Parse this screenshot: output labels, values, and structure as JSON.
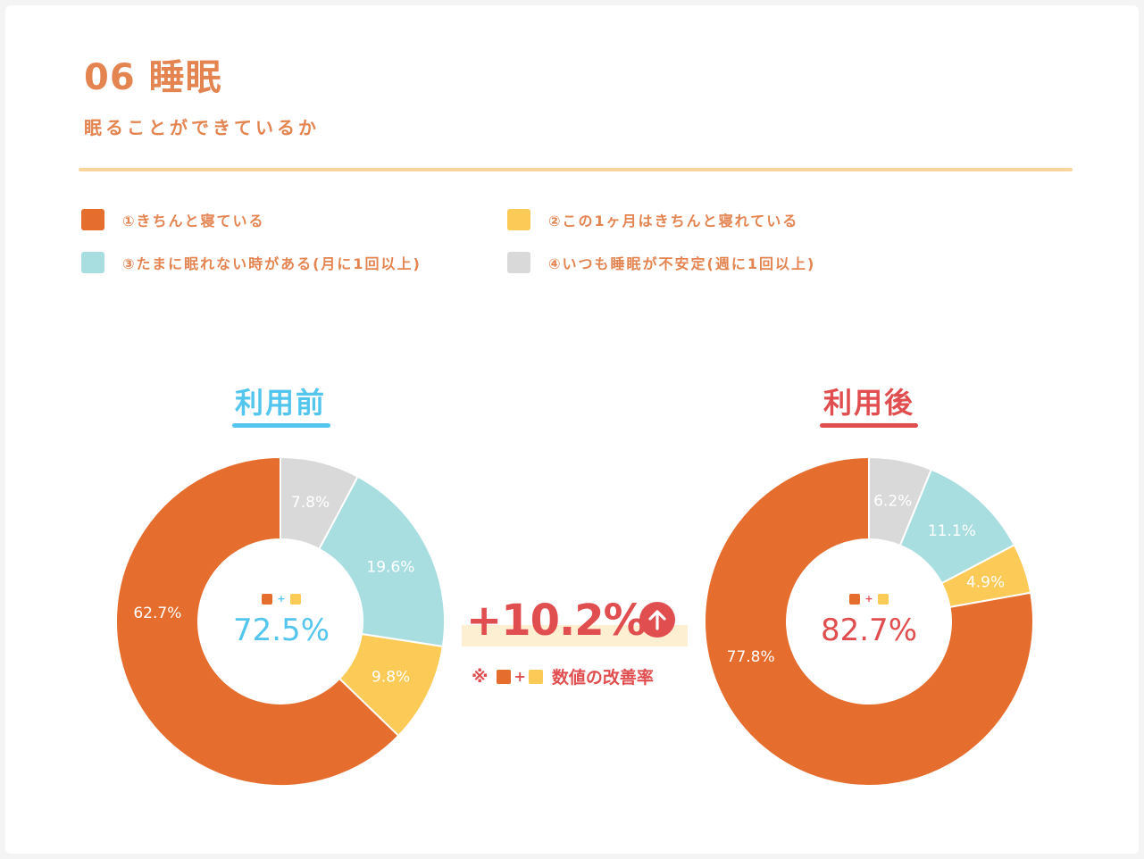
{
  "header": {
    "title": "06 睡眠",
    "subtitle": "眠ることができているか"
  },
  "legend": [
    {
      "label": "①きちんと寝ている",
      "color": "#e56d2d"
    },
    {
      "label": "②この1ヶ月はきちんと寝れている",
      "color": "#fcca56"
    },
    {
      "label": "③たまに眠れない時がある(月に1回以上)",
      "color": "#a9dee1"
    },
    {
      "label": "④いつも睡眠が不安定(週に1回以上)",
      "color": "#d9d9d9"
    }
  ],
  "before": {
    "title": "利用前",
    "title_color": "#54c6ee",
    "center_value": "72.5%",
    "center_plus": "+"
  },
  "after": {
    "title": "利用後",
    "title_color": "#e04e50",
    "center_value": "82.7%",
    "center_plus": "+"
  },
  "improvement": {
    "value": "+10.2%",
    "note_prefix": "※",
    "note_plus": "+",
    "note_text": "数値の改善率"
  },
  "chart_data": [
    {
      "type": "pie",
      "title": "利用前",
      "categories": [
        "④いつも睡眠が不安定(週に1回以上)",
        "③たまに眠れない時がある(月に1回以上)",
        "②この1ヶ月はきちんと寝れている",
        "①きちんと寝ている"
      ],
      "values": [
        7.8,
        19.6,
        9.8,
        62.7
      ],
      "labels": [
        "7.8%",
        "19.6%",
        "9.8%",
        "62.7%"
      ],
      "colors": [
        "#d9d9d9",
        "#a9dee1",
        "#fcca56",
        "#e56d2d"
      ],
      "label_colors": [
        "#ffffff",
        "#ffffff",
        "#ffffff",
        "#ffffff"
      ],
      "center_total": 72.5
    },
    {
      "type": "pie",
      "title": "利用後",
      "categories": [
        "④いつも睡眠が不安定(週に1回以上)",
        "③たまに眠れない時がある(月に1回以上)",
        "②この1ヶ月はきちんと寝れている",
        "①きちんと寝ている"
      ],
      "values": [
        6.2,
        11.1,
        4.9,
        77.8
      ],
      "labels": [
        "6.2%",
        "11.1%",
        "4.9%",
        "77.8%"
      ],
      "colors": [
        "#d9d9d9",
        "#a9dee1",
        "#fcca56",
        "#e56d2d"
      ],
      "label_colors": [
        "#ffffff",
        "#ffffff",
        "#ffffff",
        "#ffffff"
      ],
      "center_total": 82.7
    }
  ]
}
